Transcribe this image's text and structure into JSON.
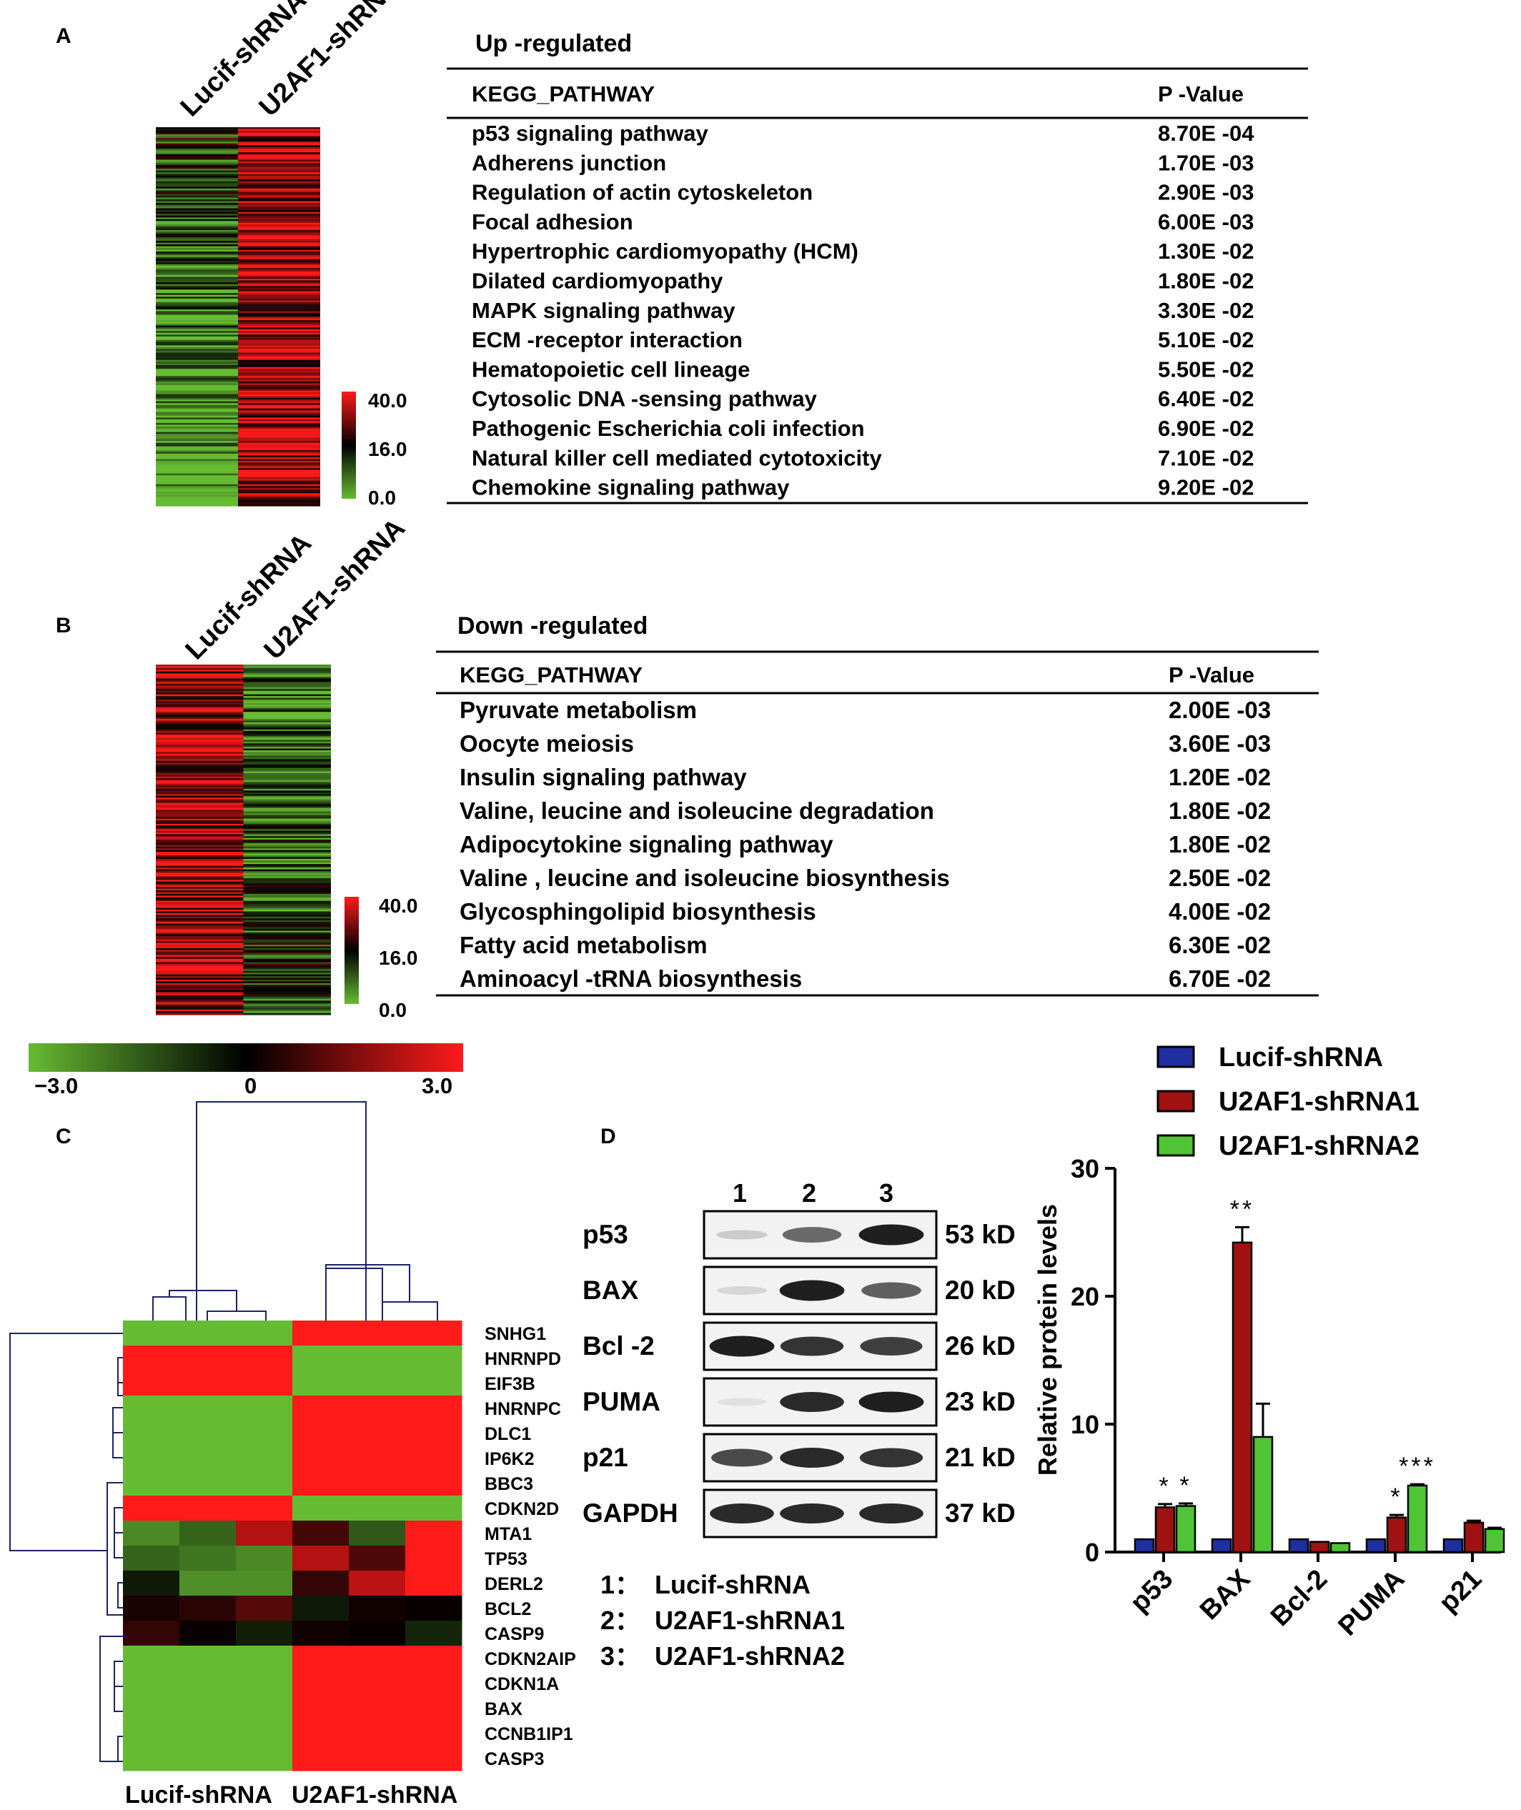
{
  "panel_labels": {
    "a": "A",
    "b": "B",
    "c": "C",
    "d": "D"
  },
  "panelA": {
    "col_labels": [
      "Lucif-shRNA",
      "U2AF1-shRNA"
    ],
    "scale": {
      "max": "40.0",
      "mid": "16.0",
      "min": "0.0"
    },
    "table": {
      "title": "Up -regulated",
      "headers": [
        "KEGG_PATHWAY",
        "P -Value"
      ],
      "rows": [
        [
          "p53 signaling pathway",
          "8.70E -04"
        ],
        [
          "Adherens     junction",
          "1.70E -03"
        ],
        [
          "Regulation of actin cytoskeleton",
          "2.90E -03"
        ],
        [
          "Focal adhesion",
          "6.00E -03"
        ],
        [
          "Hypertrophic cardiomyopathy (HCM)",
          "1.30E -02"
        ],
        [
          "Dilated cardiomyopathy",
          "1.80E -02"
        ],
        [
          "MAPK signaling pathway",
          "3.30E -02"
        ],
        [
          "ECM  -receptor interaction",
          "5.10E -02"
        ],
        [
          "Hematopoietic cell lineage",
          "5.50E -02"
        ],
        [
          "Cytosolic DNA      -sensing pathway",
          "6.40E -02"
        ],
        [
          "Pathogenic Escherichia coli infection",
          "6.90E -02"
        ],
        [
          "Natural killer cell mediated cytotoxicity",
          "7.10E -02"
        ],
        [
          "Chemokine signaling pathway",
          "9.20E -02"
        ]
      ]
    }
  },
  "panelB": {
    "col_labels": [
      "Lucif-shRNA",
      "U2AF1-shRNA"
    ],
    "scale": {
      "max": "40.0",
      "mid": "16.0",
      "min": "0.0"
    },
    "table": {
      "title": "Down -regulated",
      "headers": [
        "KEGG_PATHWAY",
        "P -Value"
      ],
      "rows": [
        [
          "Pyruvate metabolism",
          "2.00E -03"
        ],
        [
          "Oocyte meiosis",
          "3.60E -03"
        ],
        [
          "Insulin signaling pathway",
          "1.20E -02"
        ],
        [
          "Valine, leucine and isoleucine degradation",
          "1.80E -02"
        ],
        [
          "Adipocytokine     signaling pathway",
          "1.80E -02"
        ],
        [
          "Valine  , leucine   and isoleucine biosynthesis",
          "2.50E -02"
        ],
        [
          "Glycosphingolipid      biosynthesis",
          "4.00E -02"
        ],
        [
          "Fatty acid metabolism",
          "6.30E -02"
        ],
        [
          "Aminoacyl   -tRNA   biosynthesis",
          "6.70E -02"
        ]
      ]
    }
  },
  "panelC": {
    "colorbar": {
      "min": "−3.0",
      "mid": "0",
      "max": "3.0"
    },
    "genes": [
      "SNHG1",
      "HNRNPD",
      "EIF3B",
      "HNRNPC",
      "DLC1",
      "IP6K2",
      "BBC3",
      "CDKN2D",
      "MTA1",
      "TP53",
      "DERL2",
      "BCL2",
      "CASP9",
      "CDKN2AIP",
      "CDKN1A",
      "BAX",
      "CCNB1IP1",
      "CASP3"
    ],
    "group_labels": [
      "Lucif-shRNA",
      "U2AF1-shRNA"
    ],
    "values": [
      [
        -3,
        -3,
        -3,
        3,
        3,
        3
      ],
      [
        3,
        3,
        3,
        -3,
        -3,
        -3
      ],
      [
        3,
        3,
        3,
        -3,
        -3,
        -3
      ],
      [
        -3,
        -3,
        -3,
        3,
        3,
        3
      ],
      [
        -3,
        -3,
        -3,
        3,
        3,
        3
      ],
      [
        -3,
        -3,
        -3,
        3,
        3,
        3
      ],
      [
        -3,
        -3,
        -3,
        3,
        3,
        3
      ],
      [
        3,
        3,
        3,
        -3,
        -3,
        -3
      ],
      [
        -2.2,
        -1.6,
        2.1,
        0.8,
        -1.4,
        3
      ],
      [
        -1.6,
        -1.9,
        -2.2,
        2.1,
        0.9,
        3
      ],
      [
        -0.4,
        -2.3,
        -2.3,
        0.6,
        2.2,
        3
      ],
      [
        0.3,
        0.5,
        1.0,
        -0.4,
        0.2,
        0.1
      ],
      [
        0.6,
        0.1,
        -0.5,
        0.2,
        0.1,
        -0.6
      ],
      [
        -3,
        -3,
        -3,
        3,
        3,
        3
      ],
      [
        -3,
        -3,
        -3,
        3,
        3,
        3
      ],
      [
        -3,
        -3,
        -3,
        3,
        3,
        3
      ],
      [
        -3,
        -3,
        -3,
        3,
        3,
        3
      ],
      [
        -3,
        -3,
        -3,
        3,
        3,
        3
      ]
    ]
  },
  "panelD": {
    "lane_numbers": [
      "1",
      "2",
      "3"
    ],
    "blots": [
      {
        "protein": "p53",
        "size": "53 kD",
        "bands": [
          0.15,
          0.6,
          0.95
        ]
      },
      {
        "protein": "BAX",
        "size": "20 kD",
        "bands": [
          0.1,
          0.95,
          0.65
        ]
      },
      {
        "protein": "Bcl -2",
        "size": "26 kD",
        "bands": [
          0.95,
          0.85,
          0.8
        ]
      },
      {
        "protein": "PUMA",
        "size": "23 kD",
        "bands": [
          0.05,
          0.9,
          0.95
        ]
      },
      {
        "protein": "p21",
        "size": "21 kD",
        "bands": [
          0.75,
          0.9,
          0.85
        ]
      },
      {
        "protein": "GAPDH",
        "size": "37 kD",
        "bands": [
          0.9,
          0.9,
          0.9
        ]
      }
    ],
    "lane_legend": [
      "1：  Lucif-shRNA",
      "2：  U2AF1-shRNA1",
      "3：  U2AF1-shRNA2"
    ]
  },
  "colors": {
    "red": "#ff1a1a",
    "green": "#66bb33",
    "black": "#000000",
    "bar_lucif": "#1f2fa0",
    "bar_sh1": "#9e1212",
    "bar_sh2": "#4fc435"
  },
  "chart_data": {
    "type": "bar",
    "categories": [
      "p53",
      "BAX",
      "Bcl-2",
      "PUMA",
      "p21"
    ],
    "series": [
      {
        "name": "Lucif-shRNA",
        "values": [
          1.0,
          1.0,
          1.0,
          1.0,
          1.0
        ],
        "errors": [
          0,
          0,
          0,
          0,
          0
        ]
      },
      {
        "name": "U2AF1-shRNA1",
        "values": [
          3.5,
          24.2,
          0.8,
          2.7,
          2.3
        ],
        "errors": [
          0.25,
          1.2,
          0,
          0.2,
          0.15
        ]
      },
      {
        "name": "U2AF1-shRNA2",
        "values": [
          3.6,
          9.0,
          0.7,
          5.2,
          1.8
        ],
        "errors": [
          0.2,
          2.6,
          0,
          0.1,
          0.1
        ]
      }
    ],
    "significance": [
      [
        "",
        "*",
        "*"
      ],
      [
        "",
        "**",
        ""
      ],
      [
        "",
        "",
        ""
      ],
      [
        "",
        "*",
        "***"
      ],
      [
        "",
        "",
        ""
      ]
    ],
    "ylabel": "Relative protein levels",
    "ylim": [
      0,
      30
    ],
    "yticks": [
      0,
      10,
      20,
      30
    ],
    "legend": "top"
  }
}
